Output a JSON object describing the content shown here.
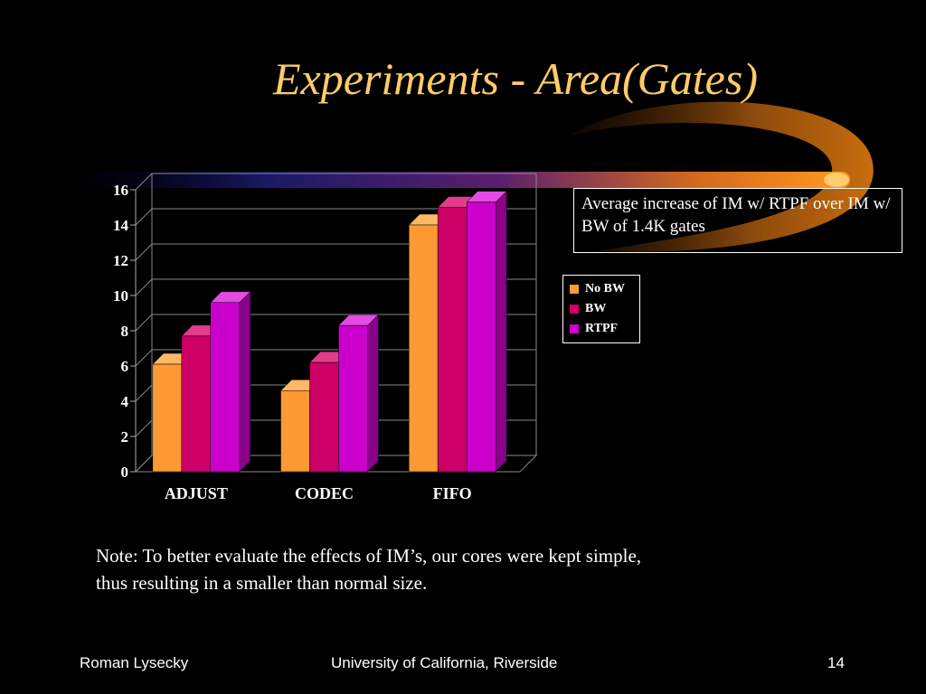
{
  "slide": {
    "title": "Experiments - Area(Gates)",
    "callout": "Average increase of IM w/ RTPF over IM w/ BW of 1.4K gates",
    "note": "Note: To better evaluate the effects of IM’s, our cores were kept simple, thus resulting in a smaller than normal size.",
    "footer": {
      "author": "Roman Lysecky",
      "institution": "University of California, Riverside",
      "page_number": "14"
    }
  },
  "colors": {
    "background": "#000000",
    "title": "#FFCC66",
    "text": "#FFFFFF"
  },
  "chart_data": {
    "type": "bar",
    "title": "",
    "xlabel": "",
    "ylabel": "",
    "categories": [
      "ADJUST",
      "CODEC",
      "FIFO"
    ],
    "series": [
      {
        "name": "No BW",
        "values": [
          6.1,
          4.6,
          14.0
        ],
        "color": "#FF9933",
        "side": "#CC6A1A",
        "top": "#FFB864"
      },
      {
        "name": "BW",
        "values": [
          7.7,
          6.2,
          15.0
        ],
        "color": "#CC0066",
        "side": "#8C0046",
        "top": "#E23C8C"
      },
      {
        "name": "RTPF",
        "values": [
          9.6,
          8.3,
          15.3
        ],
        "color": "#CC00CC",
        "side": "#8A008A",
        "top": "#E24CE2"
      }
    ],
    "ylim": [
      0,
      16
    ],
    "yticks": [
      "0",
      "2",
      "4",
      "6",
      "8",
      "10",
      "12",
      "14",
      "16"
    ],
    "grid": true,
    "legend_position": "right",
    "three_d": true
  }
}
